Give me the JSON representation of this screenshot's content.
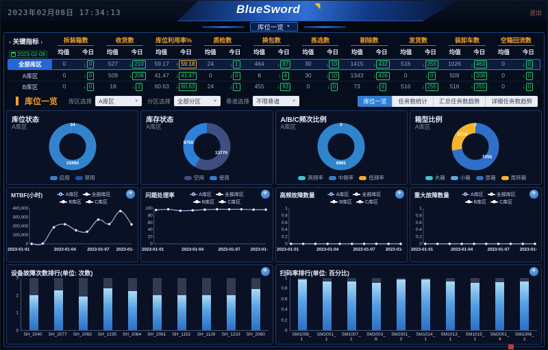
{
  "header": {
    "datetime": "2023年02月08日 17:34:13",
    "logo": "BlueSword",
    "logout": "退出",
    "nav_tab": "库位一览"
  },
  "icons": {
    "plus": "+",
    "caret_down": "▼",
    "chevron_left": "‹",
    "chevron_right": "›",
    "arrow_down": "↓",
    "arrow_up": "↑",
    "logo_arrow": "◥"
  },
  "kpi": {
    "title": "关键指标",
    "date": "2023-02-08",
    "subheaders": [
      "均值",
      "今日"
    ],
    "columns": [
      "拆装箱数",
      "收货数",
      "库位利用率%",
      "质检数",
      "换包数",
      "拣选数",
      "剔除数",
      "发货数",
      "装卸车数",
      "空箱回流数"
    ],
    "rows": [
      {
        "label": "全部库区",
        "selected": true,
        "values": [
          {
            "avg": "0",
            "today": "0",
            "dir": "down"
          },
          {
            "avg": "527",
            "today": "210",
            "dir": "down"
          },
          {
            "avg": "59.17",
            "today": "59.18",
            "dir": "up"
          },
          {
            "avg": "24",
            "today": "1",
            "dir": "down"
          },
          {
            "avg": "464",
            "today": "97",
            "dir": "down"
          },
          {
            "avg": "30",
            "today": "10",
            "dir": "down"
          },
          {
            "avg": "1415",
            "today": "432",
            "dir": "down"
          },
          {
            "avg": "516",
            "today": "255",
            "dir": "down"
          },
          {
            "avg": "1026",
            "today": "463",
            "dir": "down"
          },
          {
            "avg": "0",
            "today": "0",
            "dir": "down"
          }
        ]
      },
      {
        "label": "A库区",
        "selected": false,
        "values": [
          {
            "avg": "0",
            "today": "0",
            "dir": "down"
          },
          {
            "avg": "509",
            "today": "208",
            "dir": "down"
          },
          {
            "avg": "41.47",
            "today": "41.47",
            "dir": "down"
          },
          {
            "avg": "0",
            "today": "0",
            "dir": "down"
          },
          {
            "avg": "8",
            "today": "4",
            "dir": "down"
          },
          {
            "avg": "30",
            "today": "10",
            "dir": "down"
          },
          {
            "avg": "1343",
            "today": "426",
            "dir": "down"
          },
          {
            "avg": "0",
            "today": "0",
            "dir": "down"
          },
          {
            "avg": "509",
            "today": "208",
            "dir": "down"
          },
          {
            "avg": "0",
            "today": "0",
            "dir": "down"
          }
        ]
      },
      {
        "label": "B库区",
        "selected": false,
        "values": [
          {
            "avg": "0",
            "today": "0",
            "dir": "down"
          },
          {
            "avg": "18",
            "today": "2",
            "dir": "down"
          },
          {
            "avg": "60.63",
            "today": "60.63",
            "dir": "down"
          },
          {
            "avg": "24",
            "today": "1",
            "dir": "down"
          },
          {
            "avg": "455",
            "today": "93",
            "dir": "down"
          },
          {
            "avg": "0",
            "today": "0",
            "dir": "down"
          },
          {
            "avg": "73",
            "today": "6",
            "dir": "down"
          },
          {
            "avg": "516",
            "today": "255",
            "dir": "down"
          },
          {
            "avg": "516",
            "today": "255",
            "dir": "down"
          },
          {
            "avg": "0",
            "today": "0",
            "dir": "down"
          }
        ]
      }
    ]
  },
  "toolbar": {
    "section_title": "库位一览",
    "filters": [
      {
        "label": "库区选择",
        "value": "A库区"
      },
      {
        "label": "分区选择",
        "value": "全部分区"
      },
      {
        "label": "巷道选择",
        "value": "不限巷道"
      }
    ],
    "view_tabs": [
      {
        "label": "库位一览",
        "active": true
      },
      {
        "label": "任务数统计",
        "active": false
      },
      {
        "label": "汇总任务数趋势",
        "active": false
      },
      {
        "label": "详细任务数趋势",
        "active": false
      }
    ]
  },
  "chart_data": {
    "donuts": [
      {
        "type": "pie",
        "title": "库位状态",
        "subtitle": "A库区",
        "slices": [
          {
            "name": "禁用",
            "value": 34,
            "color": "#2050b0",
            "pos": "top"
          },
          {
            "name": "启用",
            "value": 23494,
            "color": "#3383cc",
            "pos": "bottom"
          }
        ],
        "legend": [
          {
            "label": "启用",
            "color": "#3383cc"
          },
          {
            "label": "禁用",
            "color": "#2050b0"
          }
        ]
      },
      {
        "type": "pie",
        "title": "库存状态",
        "subtitle": "A库区",
        "slices": [
          {
            "name": "空闲",
            "value": 13770,
            "color": "#3e4e80",
            "pos": "right"
          },
          {
            "name": "使用",
            "value": 9750,
            "color": "#2d80d8",
            "pos": "left"
          }
        ],
        "legend": [
          {
            "label": "空闲",
            "color": "#3e4e80"
          },
          {
            "label": "使用",
            "color": "#2d80d8"
          }
        ]
      },
      {
        "type": "pie",
        "title": "A/B/C频次比例",
        "subtitle": "A库区",
        "slices": [
          {
            "name": "高频率",
            "value": 0,
            "color": "#3fc3c8",
            "pos": "top"
          },
          {
            "name": "中频率",
            "value": 6991,
            "color": "#2f84cc",
            "pos": "bottom"
          },
          {
            "name": "低频率",
            "value": 0,
            "color": "#f0ad2a",
            "pos": "none"
          }
        ],
        "legend": [
          {
            "label": "高频率",
            "color": "#3fc3c8"
          },
          {
            "label": "中频率",
            "color": "#2f84cc"
          },
          {
            "label": "低频率",
            "color": "#f0ad2a"
          }
        ]
      },
      {
        "type": "pie",
        "title": "箱型比例",
        "subtitle": "A库区",
        "slices": [
          {
            "name": "大箱",
            "value": 0,
            "color": "#3fc3c8",
            "pos": "top"
          },
          {
            "name": "小箱",
            "value": 0,
            "color": "#5aa9e6",
            "pos": "none"
          },
          {
            "name": "原箱",
            "value": 7055,
            "color": "#2e6fc8",
            "pos": "lowright"
          },
          {
            "name": "周转箱",
            "value": 2710,
            "color": "#f5b52e",
            "pos": "upleft"
          }
        ],
        "legend": [
          {
            "label": "大箱",
            "color": "#3fc3c8"
          },
          {
            "label": "小箱",
            "color": "#5aa9e6"
          },
          {
            "label": "原箱",
            "color": "#2e6fc8"
          },
          {
            "label": "周转箱",
            "color": "#f5b52e"
          }
        ]
      }
    ],
    "line_legend": [
      {
        "label": "A库区",
        "line": "#4a7fd4",
        "dot": "#2b57b0"
      },
      {
        "label": "全部库区",
        "line": "#e9eefb",
        "dot": "#f5f8fe"
      },
      {
        "label": "B库区",
        "line": "#e9eefb",
        "dot": "#f5f8fe"
      },
      {
        "label": "C库区",
        "line": "#e9eefb",
        "dot": "#f5f8fe"
      }
    ],
    "lines": [
      {
        "type": "line",
        "title": "MTBF(小时)",
        "ylim": [
          0,
          400000
        ],
        "yticks": [
          "400,000",
          "300,000",
          "200,000",
          "100,000",
          "0"
        ],
        "xticks": [
          "2023-01-01",
          "2023-01-04",
          "2023-01-07",
          "2023-01-"
        ],
        "values": [
          0,
          3000,
          185000,
          220000,
          152000,
          137000,
          272000,
          222000,
          368000,
          218000
        ]
      },
      {
        "type": "line",
        "title": "问题处理率",
        "ylim": [
          0,
          100
        ],
        "yticks": [
          "100",
          "80",
          "60",
          "40",
          "20",
          "0"
        ],
        "xticks": [
          "2023-01-01",
          "2023-01-04",
          "2023-01-07",
          "2023-01-"
        ],
        "values": [
          95,
          97,
          93,
          94,
          96,
          97,
          97,
          97,
          96,
          96
        ]
      },
      {
        "type": "line",
        "title": "高频故障数量",
        "ylim": [
          0,
          1
        ],
        "yticks": [
          "1",
          "0.8",
          "0.6",
          "0.4",
          "0.2",
          "0"
        ],
        "xticks": [
          "2023-01-01",
          "2023-01-04",
          "2023-01-07",
          "2023-01-"
        ],
        "values": [
          0,
          0,
          0,
          0,
          0,
          0,
          0,
          0,
          0,
          0
        ]
      },
      {
        "type": "line",
        "title": "重大故障数量",
        "ylim": [
          0,
          1
        ],
        "yticks": [
          "1",
          "0.8",
          "0.6",
          "0.4",
          "0.2",
          "0"
        ],
        "xticks": [
          "2023-01-01",
          "2023-01-04",
          "2023-01-07",
          "2023-01-"
        ],
        "values": [
          0,
          0,
          0,
          0,
          0,
          0,
          0,
          0,
          0,
          0
        ]
      }
    ],
    "bars": [
      {
        "type": "bar",
        "title": "设备故障次数排行(单位: 次数)",
        "ymax": 3,
        "yticks": [
          "3",
          "2",
          "1",
          "0"
        ],
        "categories": [
          [
            "SH_2040"
          ],
          [
            "SH_2077"
          ],
          [
            "SH_2065"
          ],
          [
            "SH_1235"
          ],
          [
            "SH_2084"
          ],
          [
            "SH_2061"
          ],
          [
            "SH_1152"
          ],
          [
            "SH_1126"
          ],
          [
            "SH_1233"
          ],
          [
            "SH_2080"
          ]
        ],
        "values": [
          2.0,
          2.3,
          1.95,
          2.4,
          2.25,
          2.0,
          2.0,
          2.0,
          2.0,
          2.35
        ]
      },
      {
        "type": "bar",
        "title": "扫码率排行(单位: 百分比)",
        "ymax": 1,
        "yticks": [
          "1",
          "0.8",
          "0.6",
          "0.4",
          "0.2",
          "0"
        ],
        "categories": [
          [
            "SM1008_",
            "1"
          ],
          [
            "SM2001_",
            "1"
          ],
          [
            "SM1007_",
            "1"
          ],
          [
            "SM2003_",
            "6"
          ],
          [
            "SM2001_",
            "3"
          ],
          [
            "SM1014_",
            "1"
          ],
          [
            "SM1013_",
            "1"
          ],
          [
            "SM1015_",
            "1"
          ],
          [
            "SM2001_",
            "4"
          ],
          [
            "SM1006_",
            "1"
          ]
        ],
        "values": [
          0.97,
          0.93,
          0.94,
          0.91,
          0.97,
          0.97,
          0.94,
          0.91,
          0.92,
          0.93
        ]
      }
    ]
  }
}
